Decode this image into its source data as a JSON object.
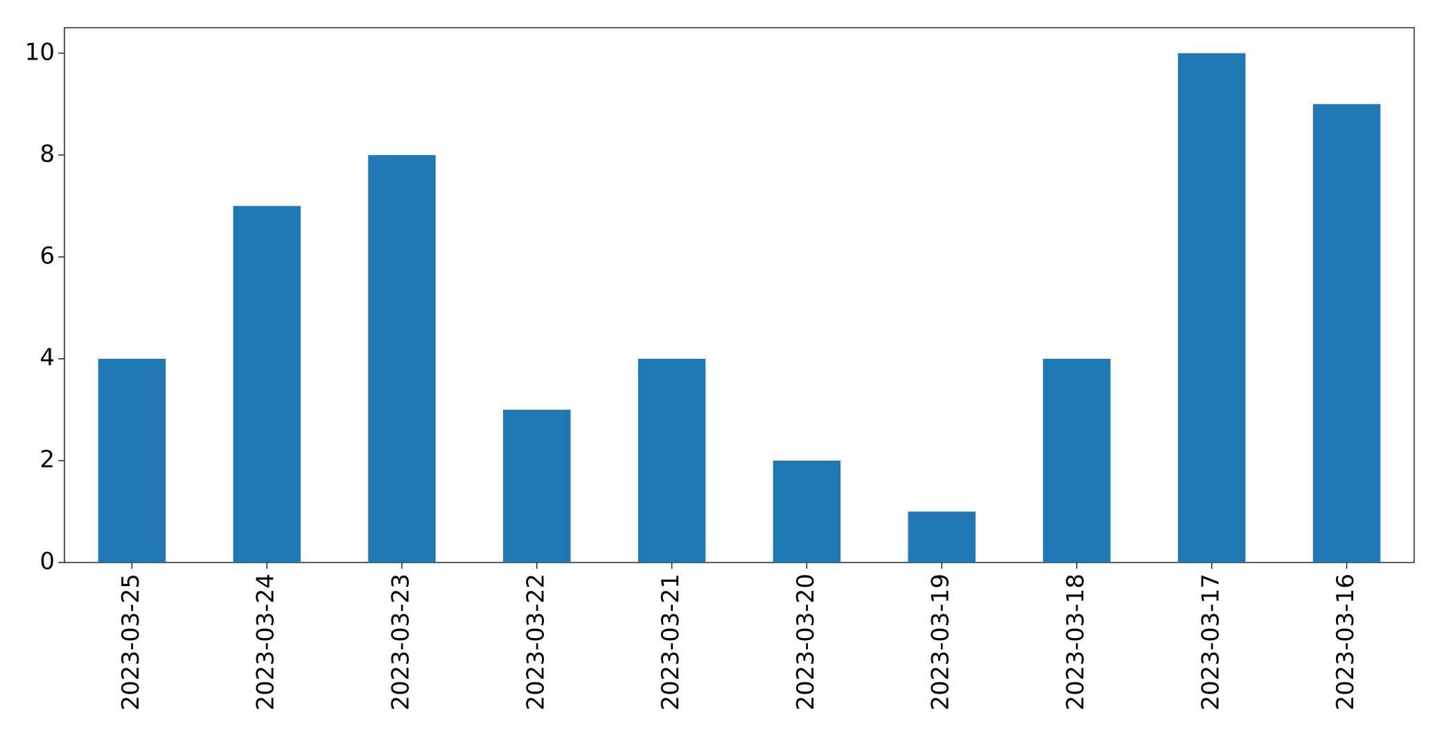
{
  "chart_data": {
    "type": "bar",
    "categories": [
      "2023-03-25",
      "2023-03-24",
      "2023-03-23",
      "2023-03-22",
      "2023-03-21",
      "2023-03-20",
      "2023-03-19",
      "2023-03-18",
      "2023-03-17",
      "2023-03-16"
    ],
    "values": [
      4,
      7,
      8,
      3,
      4,
      2,
      1,
      4,
      10,
      9
    ],
    "color": "#1f77b4",
    "ylim": [
      0,
      10.5
    ],
    "yticks": [
      0,
      2,
      4,
      6,
      8,
      10
    ],
    "grid": false
  }
}
